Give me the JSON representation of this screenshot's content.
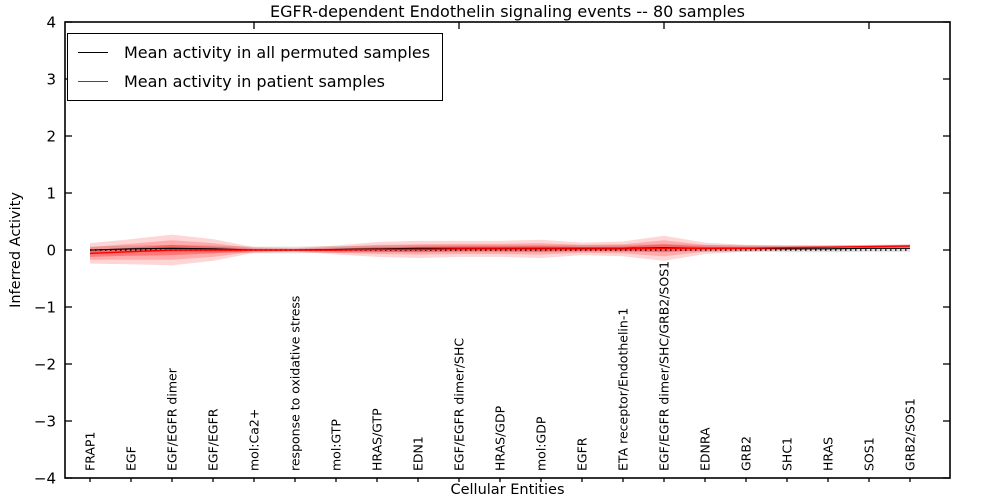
{
  "title": "EGFR-dependent Endothelin signaling events -- 80 samples",
  "axes": {
    "ylabel": "Inferred Activity",
    "xlabel": "Cellular Entities",
    "ylim": [
      -4,
      4
    ],
    "yticks": [
      4,
      3,
      2,
      1,
      0,
      -1,
      -2,
      -3,
      -4
    ],
    "ytick_labels": [
      "4",
      "3",
      "2",
      "1",
      "0",
      "−1",
      "−2",
      "−3",
      "−4"
    ]
  },
  "legend": {
    "entries": [
      {
        "label": "Mean activity in all permuted samples",
        "color": "#000000"
      },
      {
        "label": "Mean activity in patient samples",
        "color": "#ff0000"
      }
    ]
  },
  "chart_data": {
    "type": "line",
    "title": "EGFR-dependent Endothelin signaling events -- 80 samples",
    "xlabel": "Cellular Entities",
    "ylabel": "Inferred Activity",
    "ylim": [
      -4,
      4
    ],
    "grid": false,
    "legend_position": "upper left",
    "categories": [
      "FRAP1",
      "EGF",
      "EGF/EGFR dimer",
      "EGF/EGFR",
      "mol:Ca2+",
      "response to oxidative stress",
      "mol:GTP",
      "HRAS/GTP",
      "EDN1",
      "EGF/EGFR dimer/SHC",
      "HRAS/GDP",
      "mol:GDP",
      "EGFR",
      "ETA receptor/Endothelin-1",
      "EGF/EGFR dimer/SHC/GRB2/SOS1",
      "EDNRA",
      "GRB2",
      "SHC1",
      "HRAS",
      "SOS1",
      "GRB2/SOS1"
    ],
    "series": [
      {
        "name": "Mean activity in all permuted samples",
        "color": "#000000",
        "values": [
          0.0,
          0.02,
          0.03,
          0.02,
          0.0,
          0.0,
          0.01,
          0.02,
          0.03,
          0.03,
          0.03,
          0.03,
          0.03,
          0.03,
          0.04,
          0.03,
          0.03,
          0.02,
          0.02,
          0.03,
          0.03
        ]
      },
      {
        "name": "Mean activity in patient samples",
        "color": "#ff0000",
        "values": [
          -0.06,
          -0.03,
          0.0,
          0.0,
          0.0,
          0.0,
          0.0,
          0.01,
          0.01,
          0.02,
          0.02,
          0.02,
          0.02,
          0.02,
          0.03,
          0.03,
          0.03,
          0.04,
          0.05,
          0.06,
          0.07
        ]
      }
    ],
    "patient_spread_bands": {
      "color": "#ff0000",
      "outer_halfwidth": [
        0.18,
        0.22,
        0.27,
        0.19,
        0.05,
        0.03,
        0.08,
        0.13,
        0.15,
        0.14,
        0.14,
        0.16,
        0.11,
        0.13,
        0.22,
        0.1,
        0.06,
        0.045,
        0.035,
        0.03,
        0.03
      ],
      "mid_halfwidth": [
        0.11,
        0.14,
        0.17,
        0.12,
        0.03,
        0.02,
        0.05,
        0.08,
        0.09,
        0.09,
        0.09,
        0.1,
        0.07,
        0.08,
        0.14,
        0.06,
        0.04,
        0.03,
        0.022,
        0.02,
        0.02
      ],
      "inner_halfwidth": [
        0.06,
        0.07,
        0.09,
        0.06,
        0.016,
        0.01,
        0.025,
        0.04,
        0.05,
        0.045,
        0.045,
        0.05,
        0.035,
        0.04,
        0.07,
        0.03,
        0.02,
        0.015,
        0.012,
        0.01,
        0.01
      ],
      "opacity_outer": 0.16,
      "opacity_mid": 0.2,
      "opacity_inner": 0.3
    },
    "permuted_spread_band": {
      "halfwidth": 0.06,
      "color": "#000000",
      "opacity": 0.12
    },
    "zero_line": {
      "value": 0,
      "style": "dotted",
      "color": "#000000"
    },
    "top_tick_category_indices": [
      4,
      9,
      14,
      19
    ]
  }
}
